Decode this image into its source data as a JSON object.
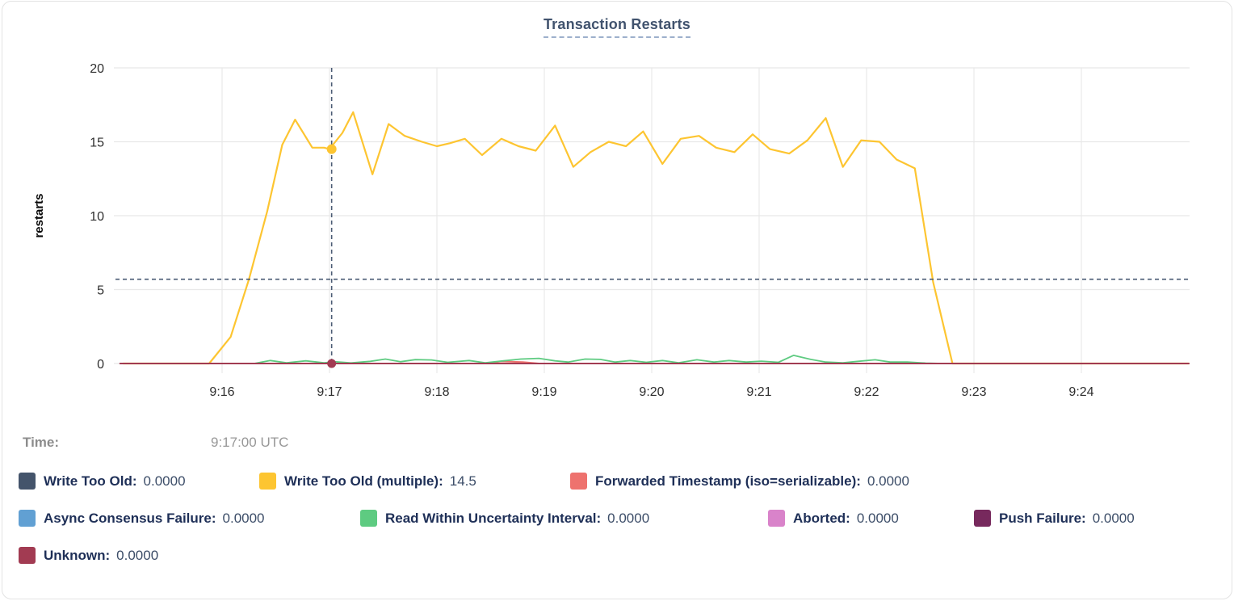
{
  "card": {
    "title": "Transaction Restarts"
  },
  "tooltip": {
    "label": "Time:",
    "value": "9:17:00 UTC"
  },
  "legend": {
    "rows": [
      [
        {
          "label": "Write Too Old:",
          "value": "0.0000",
          "color": "#44546b"
        },
        {
          "label": "Write Too Old (multiple):",
          "value": "14.5",
          "color": "#fdc531"
        },
        {
          "label": "Forwarded Timestamp (iso=serializable):",
          "value": "0.0000",
          "color": "#ee726e"
        }
      ],
      [
        {
          "label": "Async Consensus Failure:",
          "value": "0.0000",
          "color": "#61a0d3"
        },
        {
          "label": "Read Within Uncertainty Interval:",
          "value": "0.0000",
          "color": "#5ecb81"
        },
        {
          "label": "Aborted:",
          "value": "0.0000",
          "color": "#d983ca"
        },
        {
          "label": "Push Failure:",
          "value": "0.0000",
          "color": "#77295d"
        }
      ],
      [
        {
          "label": "Unknown:",
          "value": "0.0000",
          "color": "#a23b52"
        }
      ]
    ]
  },
  "chart_data": {
    "type": "line",
    "title": "Transaction Restarts",
    "xlabel": "",
    "ylabel": "restarts",
    "ylim": [
      0,
      20
    ],
    "grid": true,
    "x_range_minutes_after_9": [
      15.08,
      25.0
    ],
    "yticks": [
      {
        "v": 0,
        "label": "0"
      },
      {
        "v": 5,
        "label": "5"
      },
      {
        "v": 10,
        "label": "10"
      },
      {
        "v": 15,
        "label": "15"
      },
      {
        "v": 20,
        "label": "20"
      }
    ],
    "xticks": [
      {
        "t": 16,
        "label": "9:16"
      },
      {
        "t": 17,
        "label": "9:17"
      },
      {
        "t": 18,
        "label": "9:18"
      },
      {
        "t": 19,
        "label": "9:19"
      },
      {
        "t": 20,
        "label": "9:20"
      },
      {
        "t": 21,
        "label": "9:21"
      },
      {
        "t": 22,
        "label": "9:22"
      },
      {
        "t": 23,
        "label": "9:23"
      },
      {
        "t": 24,
        "label": "9:24"
      }
    ],
    "threshold_line": {
      "value": 5.7,
      "style": "dashed",
      "color": "#4a5b74"
    },
    "hover": {
      "t": 17.02,
      "time": "9:17:00 UTC",
      "line_color": "#4a5b74",
      "dots": [
        {
          "series": "Write Too Old (multiple)",
          "v": 14.5,
          "color": "#fdc531",
          "r": 6
        },
        {
          "series": "Unknown",
          "v": 0,
          "color": "#a23b52",
          "r": 5.5
        }
      ]
    },
    "series": [
      {
        "name": "Write Too Old",
        "color": "#44546b",
        "width": 2,
        "points": [
          [
            15.08,
            0
          ],
          [
            25,
            0
          ]
        ]
      },
      {
        "name": "Async Consensus Failure",
        "color": "#61a0d3",
        "width": 2,
        "points": [
          [
            15.08,
            0
          ],
          [
            25,
            0
          ]
        ]
      },
      {
        "name": "Aborted",
        "color": "#d983ca",
        "width": 2,
        "points": [
          [
            15.08,
            0
          ],
          [
            25,
            0
          ]
        ]
      },
      {
        "name": "Push Failure",
        "color": "#77295d",
        "width": 2,
        "points": [
          [
            15.08,
            0
          ],
          [
            25,
            0
          ]
        ]
      },
      {
        "name": "Write Too Old (multiple)",
        "color": "#fdc531",
        "width": 2.2,
        "points": [
          [
            15.08,
            0
          ],
          [
            15.88,
            0
          ],
          [
            16.08,
            1.8
          ],
          [
            16.25,
            5.7
          ],
          [
            16.42,
            10.3
          ],
          [
            16.56,
            14.8
          ],
          [
            16.68,
            16.5
          ],
          [
            16.84,
            14.6
          ],
          [
            16.95,
            14.6
          ],
          [
            17.0,
            14.5
          ],
          [
            17.12,
            15.6
          ],
          [
            17.22,
            17.0
          ],
          [
            17.4,
            12.8
          ],
          [
            17.55,
            16.2
          ],
          [
            17.7,
            15.4
          ],
          [
            17.86,
            15.0
          ],
          [
            18.0,
            14.7
          ],
          [
            18.12,
            14.9
          ],
          [
            18.26,
            15.2
          ],
          [
            18.42,
            14.1
          ],
          [
            18.6,
            15.2
          ],
          [
            18.76,
            14.7
          ],
          [
            18.92,
            14.4
          ],
          [
            19.1,
            16.1
          ],
          [
            19.27,
            13.3
          ],
          [
            19.43,
            14.3
          ],
          [
            19.6,
            15.0
          ],
          [
            19.76,
            14.7
          ],
          [
            19.92,
            15.7
          ],
          [
            20.1,
            13.5
          ],
          [
            20.27,
            15.2
          ],
          [
            20.44,
            15.4
          ],
          [
            20.6,
            14.6
          ],
          [
            20.77,
            14.3
          ],
          [
            20.94,
            15.5
          ],
          [
            21.1,
            14.5
          ],
          [
            21.28,
            14.2
          ],
          [
            21.45,
            15.1
          ],
          [
            21.62,
            16.6
          ],
          [
            21.78,
            13.3
          ],
          [
            21.95,
            15.1
          ],
          [
            22.12,
            15.0
          ],
          [
            22.28,
            13.8
          ],
          [
            22.45,
            13.2
          ],
          [
            22.62,
            5.5
          ],
          [
            22.8,
            0
          ],
          [
            25,
            0
          ]
        ]
      },
      {
        "name": "Forwarded Timestamp (iso=serializable)",
        "color": "#ee726e",
        "width": 2,
        "points": [
          [
            15.08,
            0
          ],
          [
            18.45,
            0
          ],
          [
            18.6,
            0.14
          ],
          [
            18.8,
            0.1
          ],
          [
            18.95,
            0
          ],
          [
            25,
            0
          ]
        ]
      },
      {
        "name": "Read Within Uncertainty Interval",
        "color": "#5ecb81",
        "width": 1.8,
        "points": [
          [
            15.08,
            0
          ],
          [
            16.3,
            0
          ],
          [
            16.45,
            0.2
          ],
          [
            16.6,
            0.05
          ],
          [
            16.78,
            0.18
          ],
          [
            16.95,
            0.05
          ],
          [
            17.05,
            0.12
          ],
          [
            17.2,
            0.04
          ],
          [
            17.38,
            0.15
          ],
          [
            17.52,
            0.3
          ],
          [
            17.66,
            0.12
          ],
          [
            17.8,
            0.26
          ],
          [
            17.95,
            0.24
          ],
          [
            18.1,
            0.08
          ],
          [
            18.3,
            0.2
          ],
          [
            18.45,
            0.05
          ],
          [
            18.62,
            0.18
          ],
          [
            18.78,
            0.3
          ],
          [
            18.95,
            0.35
          ],
          [
            19.1,
            0.18
          ],
          [
            19.22,
            0.1
          ],
          [
            19.38,
            0.3
          ],
          [
            19.52,
            0.28
          ],
          [
            19.66,
            0.1
          ],
          [
            19.8,
            0.2
          ],
          [
            19.95,
            0.08
          ],
          [
            20.1,
            0.2
          ],
          [
            20.25,
            0.05
          ],
          [
            20.42,
            0.25
          ],
          [
            20.58,
            0.1
          ],
          [
            20.72,
            0.2
          ],
          [
            20.88,
            0.1
          ],
          [
            21.02,
            0.16
          ],
          [
            21.18,
            0.08
          ],
          [
            21.32,
            0.55
          ],
          [
            21.48,
            0.28
          ],
          [
            21.62,
            0.1
          ],
          [
            21.78,
            0.05
          ],
          [
            21.92,
            0.15
          ],
          [
            22.08,
            0.25
          ],
          [
            22.22,
            0.1
          ],
          [
            22.38,
            0.1
          ],
          [
            22.55,
            0.03
          ],
          [
            22.7,
            0
          ],
          [
            25,
            0
          ]
        ]
      },
      {
        "name": "Unknown",
        "color": "#a23b52",
        "width": 2,
        "points": [
          [
            15.05,
            0
          ],
          [
            25,
            0
          ]
        ]
      }
    ]
  }
}
